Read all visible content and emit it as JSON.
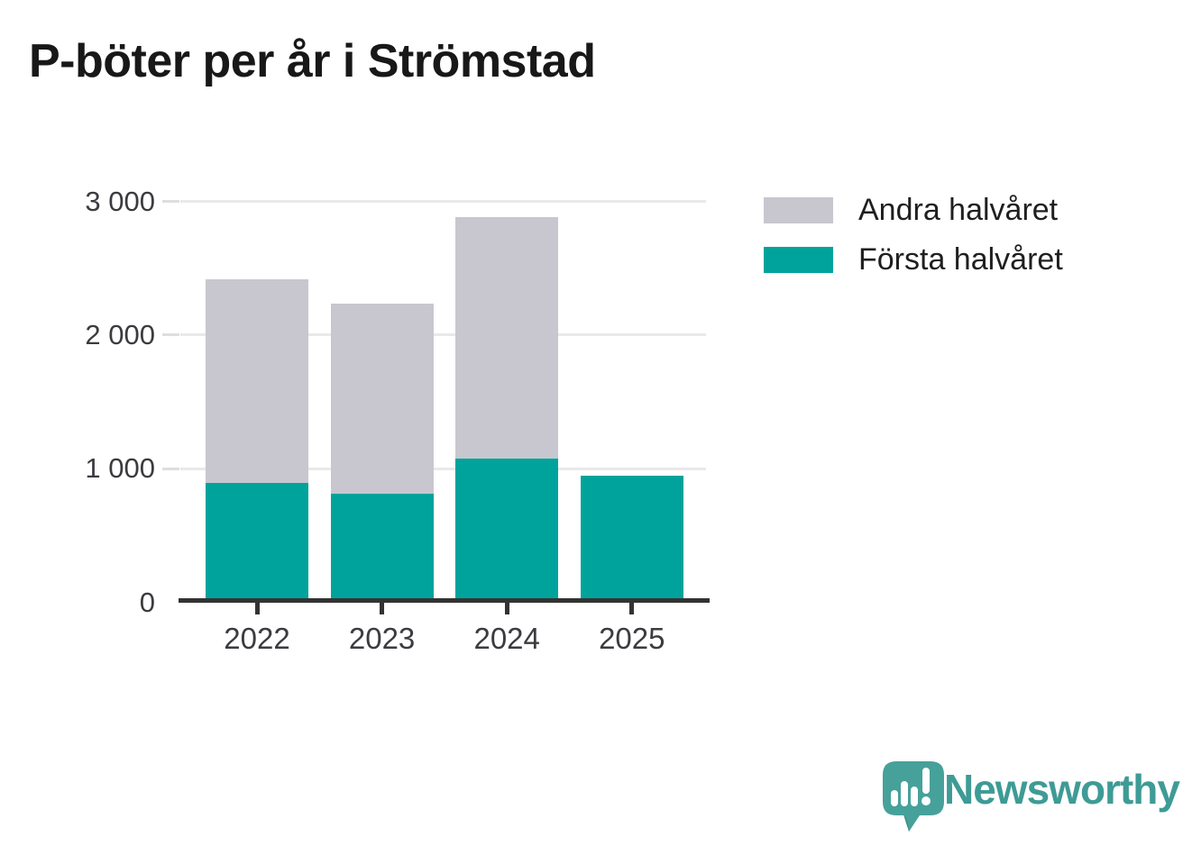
{
  "title": "P-böter per år i Strömstad",
  "chart_data": {
    "type": "bar",
    "stacked": true,
    "title": "P-böter per år i Strömstad",
    "categories": [
      "2022",
      "2023",
      "2024",
      "2025"
    ],
    "series": [
      {
        "name": "Första halvåret",
        "color": "#00a39b",
        "values": [
          895,
          810,
          1075,
          950
        ]
      },
      {
        "name": "Andra halvåret",
        "color": "#c8c7cf",
        "values": [
          1520,
          1425,
          1810,
          0
        ]
      }
    ],
    "totals": [
      2415,
      2235,
      2885,
      950
    ],
    "xlabel": "",
    "ylabel": "",
    "ylim": [
      0,
      3050
    ],
    "grid": true,
    "y_ticks": [
      {
        "label": "3 000",
        "value": 3000
      },
      {
        "label": "2 000",
        "value": 2000
      },
      {
        "label": "1 000",
        "value": 1000
      },
      {
        "label": "0",
        "value": 0
      }
    ],
    "legend_position": "right",
    "legend_items": [
      {
        "label": "Andra halvåret",
        "color": "#c8c7cf"
      },
      {
        "label": "Första halvåret",
        "color": "#00a39b"
      }
    ]
  },
  "colors": {
    "first_half": "#00a39b",
    "second_half": "#c8c7cf",
    "axis": "#333333",
    "grid": "#e9e9ea",
    "title_text": "#181818",
    "tick_text": "#3b3b40",
    "legend_text": "#1f1f1f",
    "brand_teal": "#3e9b95",
    "brand_icon_fill": "#46a19a",
    "brand_icon_tail": "#2f827c",
    "background": "#ffffff"
  },
  "footer": {
    "brand_name": "Newsworthy",
    "brand_icon": "newsworthy-speech-bubble-barchart-icon"
  }
}
